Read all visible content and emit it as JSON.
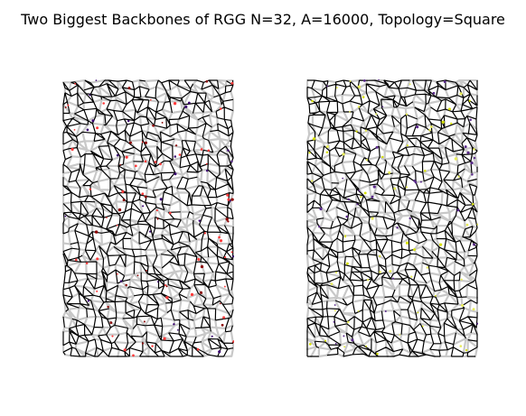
{
  "figure": {
    "title": "Two Biggest Backbones of RGG N=32, A=16000, Topology=Square"
  },
  "colors": {
    "background": "#ffffff",
    "unused_edges": "#c8c8c8",
    "backbone_edges": "#000000",
    "left_dots": [
      "#8b0000",
      "#3a0070",
      "#ff3b3b"
    ],
    "right_dots": [
      "#d7e10b",
      "#e8ec5a",
      "#5a2a8a"
    ]
  },
  "panels": [
    {
      "id": "backbone-1",
      "dot_palette": "left_dots",
      "seed": 7
    },
    {
      "id": "backbone-2",
      "dot_palette": "right_dots",
      "seed": 23
    }
  ]
}
